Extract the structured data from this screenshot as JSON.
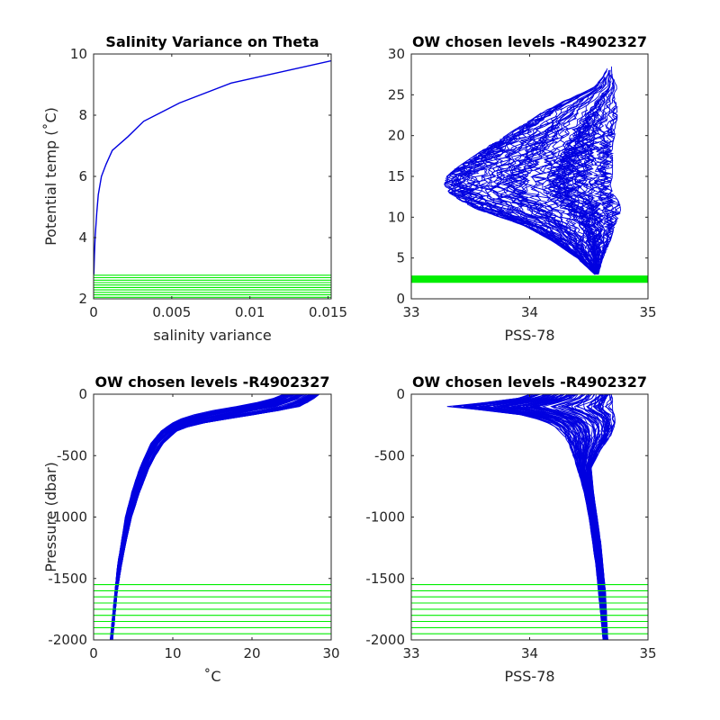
{
  "figure": {
    "colors": {
      "profile": "#0000e0",
      "level": "#00ee00",
      "axis": "#262626"
    }
  },
  "chart_data": [
    {
      "id": "tl",
      "type": "line",
      "title": "Salinity Variance on Theta",
      "xlabel": "salinity variance",
      "ylabel": "Potential temp (˚C)",
      "xlim": [
        0,
        0.0152
      ],
      "ylim": [
        2,
        10
      ],
      "xticks": [
        0,
        0.005,
        0.01,
        0.015
      ],
      "xticklabels": [
        "0",
        "0.005",
        "0.01",
        "0.015"
      ],
      "yticks": [
        2,
        4,
        6,
        8,
        10
      ],
      "yticklabels": [
        "2",
        "4",
        "6",
        "8",
        "10"
      ],
      "series": [
        {
          "role": "variance",
          "x": [
            2e-05,
            5e-05,
            0.0001,
            0.0002,
            0.0003,
            0.0005,
            0.0008,
            0.0012,
            0.0022,
            0.0032,
            0.0055,
            0.0088,
            0.0152
          ],
          "y": [
            2.8,
            3.4,
            4.0,
            4.8,
            5.4,
            6.0,
            6.4,
            6.85,
            7.3,
            7.8,
            8.4,
            9.05,
            9.78
          ]
        }
      ],
      "levels": [
        2.05,
        2.13,
        2.21,
        2.29,
        2.37,
        2.45,
        2.53,
        2.61,
        2.69,
        2.77
      ]
    },
    {
      "id": "tr",
      "type": "line",
      "title": "OW chosen levels -R4902327",
      "xlabel": "PSS-78",
      "ylabel": "",
      "xlim": [
        33,
        35
      ],
      "ylim": [
        0,
        30
      ],
      "xticks": [
        33,
        34,
        35
      ],
      "xticklabels": [
        "33",
        "34",
        "35"
      ],
      "yticks": [
        0,
        5,
        10,
        15,
        20,
        25,
        30
      ],
      "yticklabels": [
        "0",
        "5",
        "10",
        "15",
        "20",
        "25",
        "30"
      ],
      "envelope": {
        "axis": "y",
        "at": [
          3.0,
          5,
          7,
          9,
          10,
          11,
          12,
          13,
          14,
          15,
          16,
          17,
          18,
          19,
          20,
          21,
          22,
          23,
          24,
          25,
          26,
          27,
          28
        ],
        "lo": [
          34.55,
          34.4,
          34.2,
          33.95,
          33.75,
          33.55,
          33.42,
          33.32,
          33.28,
          33.3,
          33.38,
          33.48,
          33.58,
          33.68,
          33.8,
          33.9,
          34.02,
          34.12,
          34.25,
          34.4,
          34.55,
          34.6,
          34.65
        ],
        "hi": [
          34.58,
          34.62,
          34.68,
          34.72,
          34.75,
          34.77,
          34.75,
          34.7,
          34.68,
          34.7,
          34.7,
          34.7,
          34.7,
          34.7,
          34.72,
          34.72,
          34.74,
          34.74,
          34.75,
          34.74,
          34.74,
          34.72,
          34.7
        ],
        "count": 90
      },
      "levels": [
        2.05,
        2.13,
        2.21,
        2.29,
        2.37,
        2.45,
        2.53,
        2.61,
        2.69,
        2.77
      ]
    },
    {
      "id": "bl",
      "type": "line",
      "title": "OW chosen levels -R4902327",
      "xlabel": "˚C",
      "ylabel": "Pressure (dbar)",
      "xlim": [
        0,
        30
      ],
      "ylim": [
        -2000,
        0
      ],
      "xticks": [
        0,
        10,
        20,
        30
      ],
      "xticklabels": [
        "0",
        "10",
        "20",
        "30"
      ],
      "yticks": [
        -2000,
        -1500,
        -1000,
        -500,
        0
      ],
      "yticklabels": [
        "-2000",
        "-1500",
        "-1000",
        "-500",
        "0"
      ],
      "envelope": {
        "axis": "y",
        "at": [
          -2000,
          -1800,
          -1600,
          -1400,
          -1200,
          -1000,
          -800,
          -600,
          -500,
          -400,
          -300,
          -250,
          -200,
          -150,
          -100,
          -50,
          0
        ],
        "lo": [
          2.1,
          2.4,
          2.7,
          3.0,
          3.5,
          4.0,
          4.8,
          5.8,
          6.5,
          7.2,
          8.5,
          9.5,
          11.0,
          13.5,
          18.0,
          22.0,
          24.0
        ],
        "hi": [
          2.4,
          2.7,
          3.0,
          3.5,
          4.1,
          4.8,
          5.8,
          7.0,
          7.8,
          8.8,
          10.5,
          12.5,
          17.0,
          22.0,
          26.0,
          27.5,
          28.5
        ],
        "count": 80
      },
      "levels": [
        -1550,
        -1600,
        -1650,
        -1700,
        -1750,
        -1800,
        -1850,
        -1900,
        -1950,
        -2000
      ]
    },
    {
      "id": "br",
      "type": "line",
      "title": "OW chosen levels -R4902327",
      "xlabel": "PSS-78",
      "ylabel": "",
      "xlim": [
        33,
        35
      ],
      "ylim": [
        -2000,
        0
      ],
      "xticks": [
        33,
        34,
        35
      ],
      "xticklabels": [
        "33",
        "34",
        "35"
      ],
      "yticks": [
        -2000,
        -1500,
        -1000,
        -500,
        0
      ],
      "yticklabels": [
        "-2000",
        "-1500",
        "-1000",
        "-500",
        "0"
      ],
      "envelope": {
        "axis": "y",
        "at": [
          -2000,
          -1800,
          -1600,
          -1400,
          -1200,
          -1000,
          -800,
          -600,
          -450,
          -350,
          -250,
          -180,
          -130,
          -100,
          -70,
          -30,
          0
        ],
        "lo": [
          34.62,
          34.6,
          34.58,
          34.56,
          34.53,
          34.5,
          34.46,
          34.4,
          34.35,
          34.3,
          34.2,
          34.0,
          33.6,
          33.3,
          33.6,
          33.9,
          34.0
        ],
        "hi": [
          34.66,
          34.65,
          34.64,
          34.62,
          34.6,
          34.57,
          34.54,
          34.52,
          34.6,
          34.68,
          34.72,
          34.72,
          34.7,
          34.7,
          34.7,
          34.7,
          34.7
        ],
        "count": 90
      },
      "levels": [
        -1550,
        -1600,
        -1650,
        -1700,
        -1750,
        -1800,
        -1850,
        -1900,
        -1950,
        -2000
      ]
    }
  ]
}
